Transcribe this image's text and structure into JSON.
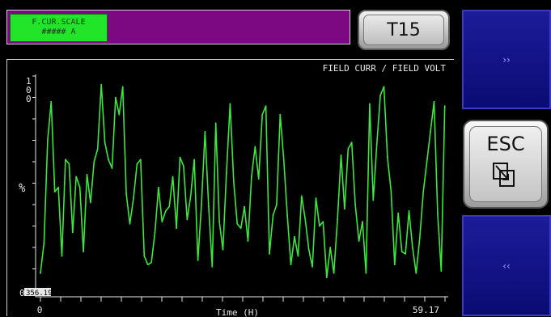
{
  "header": {
    "scale_box": {
      "line1": "F.CUR.SCALE",
      "line2": "##### A"
    },
    "screen_button": "T15"
  },
  "nav": {
    "next_label": "››",
    "esc_label": "ESC",
    "esc_icon": "window-switch-icon",
    "prev_label": "‹‹"
  },
  "colors": {
    "header_strip": "#7c0882",
    "scale_box": "#22e428",
    "nav_button": "#12128a",
    "trace": "#3be83b"
  },
  "chart_data": {
    "type": "line",
    "title": "FIELD CURR / FIELD VOLT",
    "xlabel": "Time (H)",
    "ylabel": "%",
    "xlim": [
      0,
      59.17
    ],
    "ylim": [
      0,
      100
    ],
    "x_tick_labels": [
      "0",
      "59.17"
    ],
    "y_tick_labels": [
      "0",
      "100"
    ],
    "cursor_readout": "356.196",
    "grid": false,
    "series": [
      {
        "x": [
          0.0,
          0.52,
          1.05,
          1.57,
          2.09,
          2.62,
          3.14,
          3.66,
          4.19,
          4.71,
          5.23,
          5.76,
          6.28,
          6.8,
          7.33,
          7.85,
          8.37,
          8.9,
          9.42,
          9.94,
          10.47,
          10.99,
          11.51,
          12.04,
          12.56,
          13.08,
          13.61,
          14.13,
          14.65,
          15.18,
          15.7,
          16.22,
          16.75,
          17.27,
          17.79,
          18.32,
          18.84,
          19.36,
          19.89,
          20.41,
          20.93,
          21.46,
          21.98,
          22.5,
          23.03,
          23.55,
          24.07,
          24.6,
          25.12,
          25.64,
          26.17,
          26.69,
          27.21,
          27.74,
          28.26,
          28.78,
          29.31,
          29.83,
          30.35,
          30.88,
          31.4,
          31.92,
          32.45,
          32.97,
          33.49,
          34.02,
          34.54,
          35.06,
          35.59,
          36.11,
          36.63,
          37.16,
          37.68,
          38.2,
          38.73,
          39.25,
          39.77,
          40.3,
          40.82,
          41.34,
          41.87,
          42.39,
          42.91,
          43.44,
          43.96,
          44.48,
          45.01,
          45.53,
          46.05,
          46.58,
          47.1,
          47.62,
          48.15,
          48.67,
          49.19,
          49.72,
          50.24,
          50.76,
          51.29,
          51.81,
          52.33,
          52.86,
          53.38,
          53.9,
          54.43,
          54.95,
          55.47,
          56.0,
          56.52,
          57.04,
          57.57,
          58.09,
          58.61,
          59.14
        ],
        "y": [
          8,
          22,
          70,
          88,
          46,
          48,
          16,
          61,
          59,
          27,
          53,
          48,
          18,
          54,
          41,
          60,
          66,
          96,
          69,
          61,
          57,
          90,
          82,
          95,
          45,
          31,
          43,
          59,
          61,
          16,
          12,
          13,
          27,
          48,
          32,
          37,
          39,
          53,
          29,
          62,
          58,
          33,
          44,
          61,
          14,
          40,
          74,
          39,
          11,
          78,
          32,
          19,
          55,
          87,
          51,
          31,
          29,
          39,
          23,
          53,
          67,
          52,
          82,
          86,
          17,
          35,
          40,
          82,
          61,
          35,
          12,
          25,
          16,
          44,
          33,
          19,
          11,
          43,
          30,
          32,
          6,
          20,
          8,
          33,
          63,
          38,
          66,
          69,
          40,
          23,
          32,
          8,
          87,
          42,
          68,
          91,
          95,
          62,
          46,
          12,
          36,
          18,
          17,
          37,
          20,
          8,
          24,
          46,
          60,
          74,
          88,
          36,
          9,
          86
        ]
      }
    ]
  }
}
